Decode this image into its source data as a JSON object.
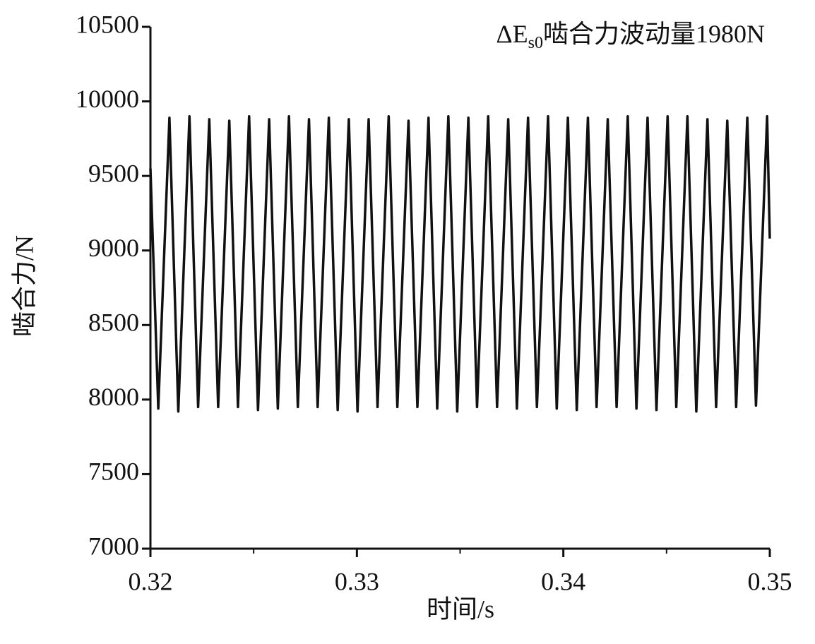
{
  "chart_data": {
    "type": "line",
    "title": [
      "ΔE",
      "s0",
      "啮合力波动量1980N"
    ],
    "x_label": "时间/s",
    "y_label": "啮合力/N",
    "xlim": [
      0.32,
      0.35
    ],
    "xticks": [
      0.32,
      0.33,
      0.34,
      0.35
    ],
    "xminor": [
      0.325,
      0.335,
      0.345
    ],
    "ylim": [
      7000,
      10500
    ],
    "yticks": [
      7000,
      7500,
      8000,
      8500,
      9000,
      9500,
      10000,
      10500
    ],
    "series": [
      {
        "name": "啮合力",
        "color": "#111111",
        "x": [
          0.32,
          0.32038,
          0.32092,
          0.32135,
          0.32189,
          0.32231,
          0.32285,
          0.32328,
          0.32382,
          0.32424,
          0.32478,
          0.32521,
          0.32575,
          0.32617,
          0.32671,
          0.32714,
          0.32768,
          0.3281,
          0.32864,
          0.32907,
          0.32961,
          0.33003,
          0.33057,
          0.331,
          0.33154,
          0.33196,
          0.3325,
          0.33293,
          0.33347,
          0.33389,
          0.33443,
          0.33486,
          0.3354,
          0.33582,
          0.33636,
          0.33679,
          0.33733,
          0.33775,
          0.33829,
          0.33872,
          0.33926,
          0.33968,
          0.34022,
          0.34065,
          0.34119,
          0.34161,
          0.34215,
          0.34258,
          0.34312,
          0.34354,
          0.34408,
          0.34451,
          0.34505,
          0.34547,
          0.34601,
          0.34644,
          0.34698,
          0.3474,
          0.34794,
          0.34837,
          0.34891,
          0.34933,
          0.34987,
          0.35
        ],
        "values": [
          9550,
          7940,
          9890,
          7920,
          9900,
          7950,
          9880,
          7950,
          9870,
          7950,
          9900,
          7930,
          9880,
          7940,
          9900,
          7950,
          9880,
          7950,
          9890,
          7930,
          9880,
          7920,
          9880,
          7950,
          9900,
          7950,
          9870,
          7950,
          9890,
          7940,
          9900,
          7920,
          9890,
          7950,
          9900,
          7950,
          9880,
          7940,
          9890,
          7950,
          9900,
          7940,
          9890,
          7930,
          9890,
          7950,
          9880,
          7950,
          9900,
          7940,
          9890,
          7930,
          9900,
          7950,
          9900,
          7920,
          9880,
          7950,
          9870,
          7950,
          9890,
          7960,
          9900,
          9080
        ]
      }
    ]
  }
}
